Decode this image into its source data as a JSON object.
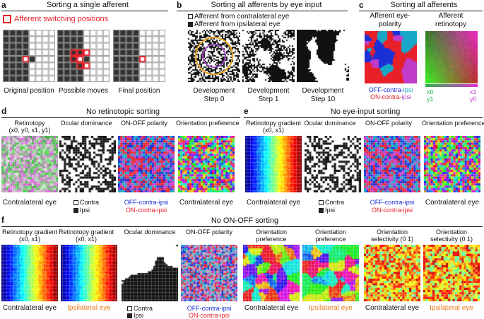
{
  "panel_a": {
    "label": "a",
    "title": "Sorting a single afferent",
    "legend": "Afferent switching positions",
    "captions": [
      "Original position",
      "Possible moves",
      "Final position"
    ]
  },
  "panel_b": {
    "label": "b",
    "title": "Sorting all afferents by eye input",
    "legend_contra": "Afferent from contralateral eye",
    "legend_ipsi": "Afferent from ipsilateral eye",
    "captions": [
      "Development Step 0",
      "Development Step 1",
      "Development Step 10"
    ]
  },
  "panel_c": {
    "label": "c",
    "title": "Sorting all afferents",
    "col1_title": "Afferent eye-polarity",
    "col2_title": "Afferent retinotopy",
    "polarity_off": "OFF-contra-",
    "polarity_off_ipsi": "ipsi",
    "polarity_on": "ON-contra-",
    "polarity_on_ipsi": "ipsi",
    "axis_x0": "x0",
    "axis_x1": "x1",
    "axis_y1": "y1",
    "axis_y0": "y0"
  },
  "panel_d": {
    "label": "d",
    "title": "No retinotopic sorting",
    "maps": [
      {
        "title": "Retinotopy",
        "subtitle": "(x0, y0, x1, y1)",
        "caption": "Contralateral eye"
      },
      {
        "title": "Ocular dominance",
        "caption_contra": "Contra",
        "caption_ipsi": "Ipsi"
      },
      {
        "title": "ON-OFF polarity",
        "caption_off": "OFF-contra-ipsi",
        "caption_on": "ON-contra-ipsi"
      },
      {
        "title": "Orientation preference",
        "caption": "Contralateral eye"
      }
    ]
  },
  "panel_e": {
    "label": "e",
    "title": "No eye-input sorting",
    "maps": [
      {
        "title": "Retinotopy gradient",
        "subtitle": "(x0, x1)",
        "caption": "Contralateral eye"
      },
      {
        "title": "Ocular dominance",
        "caption_contra": "Contra",
        "caption_ipsi": "Ipsi"
      },
      {
        "title": "ON-OFF polarity",
        "caption_off": "OFF-contra-ipsi",
        "caption_on": "ON-contra-ipsi"
      },
      {
        "title": "Orientation preference",
        "caption": "Contralateral eye"
      }
    ]
  },
  "panel_f": {
    "label": "f",
    "title": "No ON-OFF sorting",
    "maps": [
      {
        "title": "Retinotopy gradient (x0, x1)",
        "caption": "Contralateral eye"
      },
      {
        "title": "Retinotopy gradient (x0, x1)",
        "caption": "Ipsilateral eye"
      },
      {
        "title": "Ocular dominance",
        "caption_contra": "Contra",
        "caption_ipsi": "Ipsi"
      },
      {
        "title": "ON-OFF polarity",
        "caption_off": "OFF-contra-ipsi",
        "caption_on": "ON-contra-ipsi"
      },
      {
        "title": "Orientation preference",
        "caption": "Contralateral eye"
      },
      {
        "title": "Orientation preference",
        "caption": "Ipsilateral eye"
      },
      {
        "title": "Orientation selectivity (0 1)",
        "caption": "Contralateral eye"
      },
      {
        "title": "Orientation selectivity (0 1)",
        "caption": "Ipsilateral eye"
      }
    ]
  },
  "colors": {
    "contra_black": "#222222",
    "red_highlight": "#e8202a",
    "orange_text": "#e87c1e",
    "off_blue": "#1a2fd6",
    "ipsi_cyan": "#18a7c9",
    "on_red": "#e8202a"
  }
}
